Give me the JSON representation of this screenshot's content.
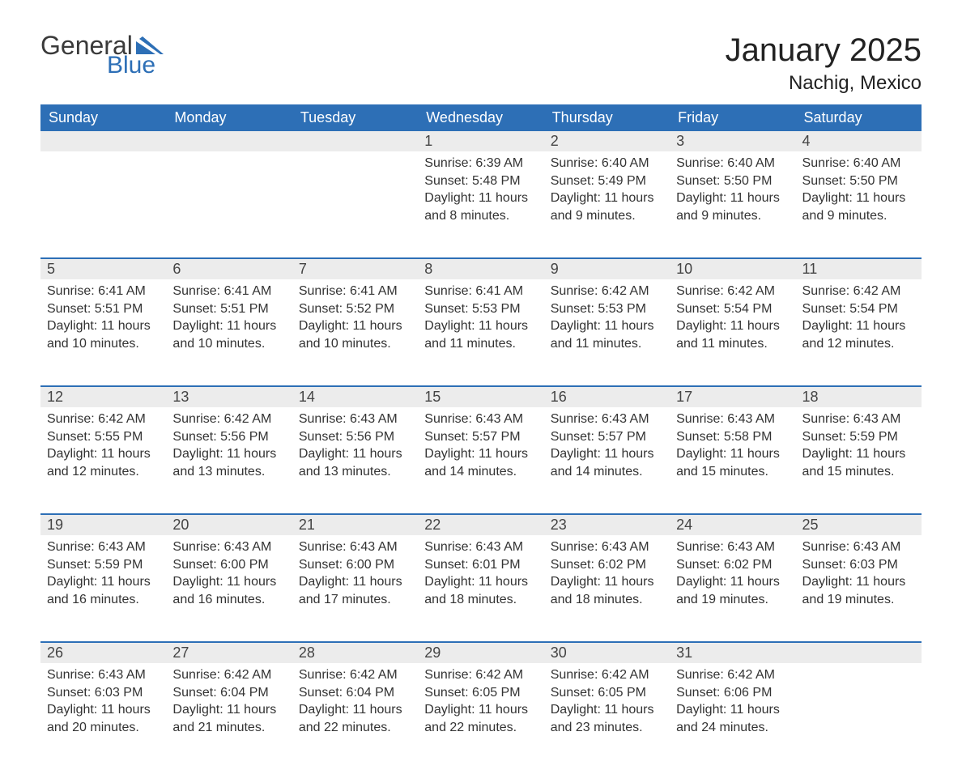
{
  "logo": {
    "word1": "General",
    "word2": "Blue"
  },
  "title": "January 2025",
  "location": "Nachig, Mexico",
  "colors": {
    "header_bg": "#2d6fb6",
    "header_text": "#ffffff",
    "daynum_bg": "#ececec",
    "row_border": "#2d6fb6",
    "text": "#333333",
    "background": "#ffffff"
  },
  "fonts": {
    "title_size": 40,
    "location_size": 24,
    "header_size": 18,
    "cell_size": 16
  },
  "weekdays": [
    "Sunday",
    "Monday",
    "Tuesday",
    "Wednesday",
    "Thursday",
    "Friday",
    "Saturday"
  ],
  "weeks": [
    [
      null,
      null,
      null,
      {
        "n": "1",
        "sr": "Sunrise: 6:39 AM",
        "ss": "Sunset: 5:48 PM",
        "dl": "Daylight: 11 hours and 8 minutes."
      },
      {
        "n": "2",
        "sr": "Sunrise: 6:40 AM",
        "ss": "Sunset: 5:49 PM",
        "dl": "Daylight: 11 hours and 9 minutes."
      },
      {
        "n": "3",
        "sr": "Sunrise: 6:40 AM",
        "ss": "Sunset: 5:50 PM",
        "dl": "Daylight: 11 hours and 9 minutes."
      },
      {
        "n": "4",
        "sr": "Sunrise: 6:40 AM",
        "ss": "Sunset: 5:50 PM",
        "dl": "Daylight: 11 hours and 9 minutes."
      }
    ],
    [
      {
        "n": "5",
        "sr": "Sunrise: 6:41 AM",
        "ss": "Sunset: 5:51 PM",
        "dl": "Daylight: 11 hours and 10 minutes."
      },
      {
        "n": "6",
        "sr": "Sunrise: 6:41 AM",
        "ss": "Sunset: 5:51 PM",
        "dl": "Daylight: 11 hours and 10 minutes."
      },
      {
        "n": "7",
        "sr": "Sunrise: 6:41 AM",
        "ss": "Sunset: 5:52 PM",
        "dl": "Daylight: 11 hours and 10 minutes."
      },
      {
        "n": "8",
        "sr": "Sunrise: 6:41 AM",
        "ss": "Sunset: 5:53 PM",
        "dl": "Daylight: 11 hours and 11 minutes."
      },
      {
        "n": "9",
        "sr": "Sunrise: 6:42 AM",
        "ss": "Sunset: 5:53 PM",
        "dl": "Daylight: 11 hours and 11 minutes."
      },
      {
        "n": "10",
        "sr": "Sunrise: 6:42 AM",
        "ss": "Sunset: 5:54 PM",
        "dl": "Daylight: 11 hours and 11 minutes."
      },
      {
        "n": "11",
        "sr": "Sunrise: 6:42 AM",
        "ss": "Sunset: 5:54 PM",
        "dl": "Daylight: 11 hours and 12 minutes."
      }
    ],
    [
      {
        "n": "12",
        "sr": "Sunrise: 6:42 AM",
        "ss": "Sunset: 5:55 PM",
        "dl": "Daylight: 11 hours and 12 minutes."
      },
      {
        "n": "13",
        "sr": "Sunrise: 6:42 AM",
        "ss": "Sunset: 5:56 PM",
        "dl": "Daylight: 11 hours and 13 minutes."
      },
      {
        "n": "14",
        "sr": "Sunrise: 6:43 AM",
        "ss": "Sunset: 5:56 PM",
        "dl": "Daylight: 11 hours and 13 minutes."
      },
      {
        "n": "15",
        "sr": "Sunrise: 6:43 AM",
        "ss": "Sunset: 5:57 PM",
        "dl": "Daylight: 11 hours and 14 minutes."
      },
      {
        "n": "16",
        "sr": "Sunrise: 6:43 AM",
        "ss": "Sunset: 5:57 PM",
        "dl": "Daylight: 11 hours and 14 minutes."
      },
      {
        "n": "17",
        "sr": "Sunrise: 6:43 AM",
        "ss": "Sunset: 5:58 PM",
        "dl": "Daylight: 11 hours and 15 minutes."
      },
      {
        "n": "18",
        "sr": "Sunrise: 6:43 AM",
        "ss": "Sunset: 5:59 PM",
        "dl": "Daylight: 11 hours and 15 minutes."
      }
    ],
    [
      {
        "n": "19",
        "sr": "Sunrise: 6:43 AM",
        "ss": "Sunset: 5:59 PM",
        "dl": "Daylight: 11 hours and 16 minutes."
      },
      {
        "n": "20",
        "sr": "Sunrise: 6:43 AM",
        "ss": "Sunset: 6:00 PM",
        "dl": "Daylight: 11 hours and 16 minutes."
      },
      {
        "n": "21",
        "sr": "Sunrise: 6:43 AM",
        "ss": "Sunset: 6:00 PM",
        "dl": "Daylight: 11 hours and 17 minutes."
      },
      {
        "n": "22",
        "sr": "Sunrise: 6:43 AM",
        "ss": "Sunset: 6:01 PM",
        "dl": "Daylight: 11 hours and 18 minutes."
      },
      {
        "n": "23",
        "sr": "Sunrise: 6:43 AM",
        "ss": "Sunset: 6:02 PM",
        "dl": "Daylight: 11 hours and 18 minutes."
      },
      {
        "n": "24",
        "sr": "Sunrise: 6:43 AM",
        "ss": "Sunset: 6:02 PM",
        "dl": "Daylight: 11 hours and 19 minutes."
      },
      {
        "n": "25",
        "sr": "Sunrise: 6:43 AM",
        "ss": "Sunset: 6:03 PM",
        "dl": "Daylight: 11 hours and 19 minutes."
      }
    ],
    [
      {
        "n": "26",
        "sr": "Sunrise: 6:43 AM",
        "ss": "Sunset: 6:03 PM",
        "dl": "Daylight: 11 hours and 20 minutes."
      },
      {
        "n": "27",
        "sr": "Sunrise: 6:42 AM",
        "ss": "Sunset: 6:04 PM",
        "dl": "Daylight: 11 hours and 21 minutes."
      },
      {
        "n": "28",
        "sr": "Sunrise: 6:42 AM",
        "ss": "Sunset: 6:04 PM",
        "dl": "Daylight: 11 hours and 22 minutes."
      },
      {
        "n": "29",
        "sr": "Sunrise: 6:42 AM",
        "ss": "Sunset: 6:05 PM",
        "dl": "Daylight: 11 hours and 22 minutes."
      },
      {
        "n": "30",
        "sr": "Sunrise: 6:42 AM",
        "ss": "Sunset: 6:05 PM",
        "dl": "Daylight: 11 hours and 23 minutes."
      },
      {
        "n": "31",
        "sr": "Sunrise: 6:42 AM",
        "ss": "Sunset: 6:06 PM",
        "dl": "Daylight: 11 hours and 24 minutes."
      },
      null
    ]
  ]
}
